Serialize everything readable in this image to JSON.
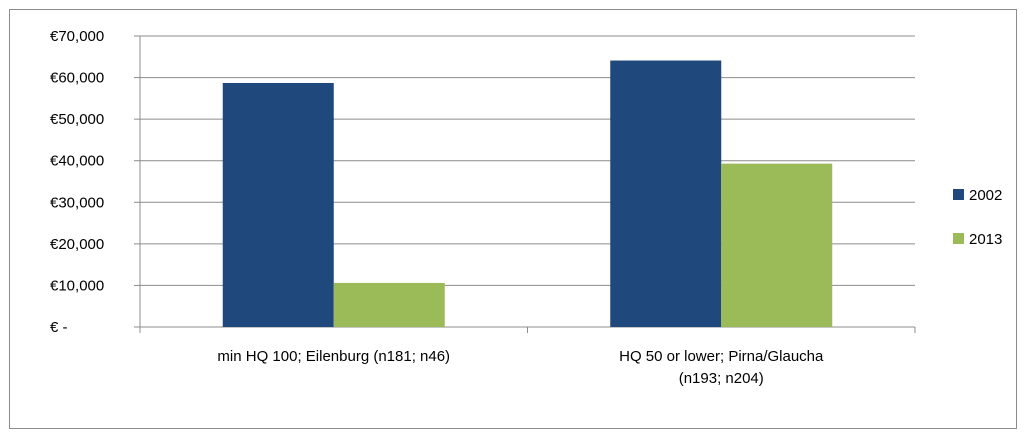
{
  "chart_data": {
    "type": "bar",
    "categories": [
      [
        "min HQ 100; Eilenburg (n181; n46)"
      ],
      [
        "HQ 50 or lower; Pirna/Glaucha",
        "(n193; n204)"
      ]
    ],
    "series": [
      {
        "name": "2002",
        "color": "#1f497d",
        "values": [
          58700,
          64100
        ]
      },
      {
        "name": "2013",
        "color": "#9bbb59",
        "values": [
          10600,
          39300
        ]
      }
    ],
    "ylim": [
      0,
      70000
    ],
    "yticks": [
      0,
      10000,
      20000,
      30000,
      40000,
      50000,
      60000,
      70000
    ],
    "ytick_labels": [
      "€ -",
      "€10,000",
      "€20,000",
      "€30,000",
      "€40,000",
      "€50,000",
      "€60,000",
      "€70,000"
    ],
    "grid": true,
    "legend_position": "right",
    "title": "",
    "xlabel": "",
    "ylabel": ""
  }
}
